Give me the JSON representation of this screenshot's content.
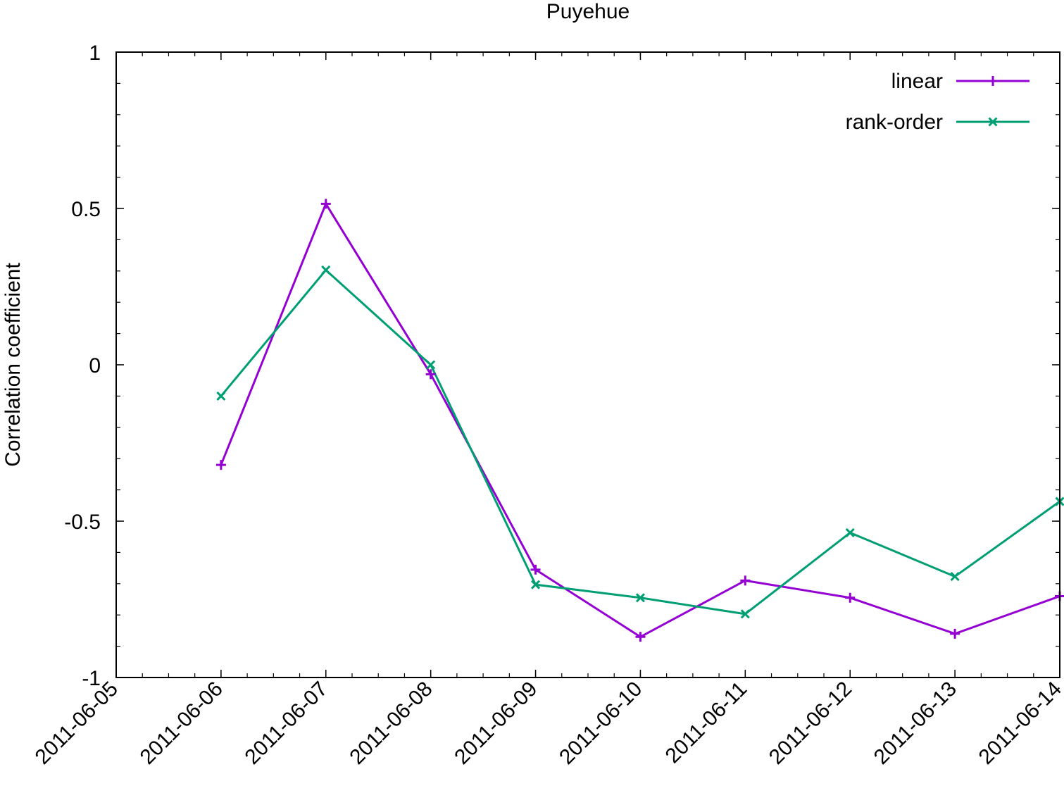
{
  "chart_data": {
    "type": "line",
    "title": "Puyehue",
    "xlabel": "",
    "ylabel": "Correlation coefficient",
    "x": [
      "2011-06-06",
      "2011-06-07",
      "2011-06-08",
      "2011-06-09",
      "2011-06-10",
      "2011-06-11",
      "2011-06-12",
      "2011-06-13",
      "2011-06-14"
    ],
    "xlim": [
      "2011-06-05",
      "2011-06-14"
    ],
    "xticks": [
      "2011-06-05",
      "2011-06-06",
      "2011-06-07",
      "2011-06-08",
      "2011-06-09",
      "2011-06-10",
      "2011-06-11",
      "2011-06-12",
      "2011-06-13",
      "2011-06-14"
    ],
    "ylim": [
      -1,
      1
    ],
    "yticks": [
      -1,
      -0.5,
      0,
      0.5,
      1
    ],
    "ytick_labels": [
      "-1",
      "-0.5",
      "0",
      "0.5",
      "1"
    ],
    "grid": false,
    "legend_position": "top-right",
    "series": [
      {
        "name": "linear",
        "color": "#9400d3",
        "marker": "plus",
        "values": [
          -0.32,
          0.515,
          -0.03,
          -0.655,
          -0.87,
          -0.69,
          -0.745,
          -0.86,
          -0.74
        ]
      },
      {
        "name": "rank-order",
        "color": "#009e73",
        "marker": "cross",
        "values": [
          -0.1,
          0.303,
          0.0,
          -0.703,
          -0.745,
          -0.797,
          -0.537,
          -0.677,
          -0.437
        ]
      }
    ]
  }
}
